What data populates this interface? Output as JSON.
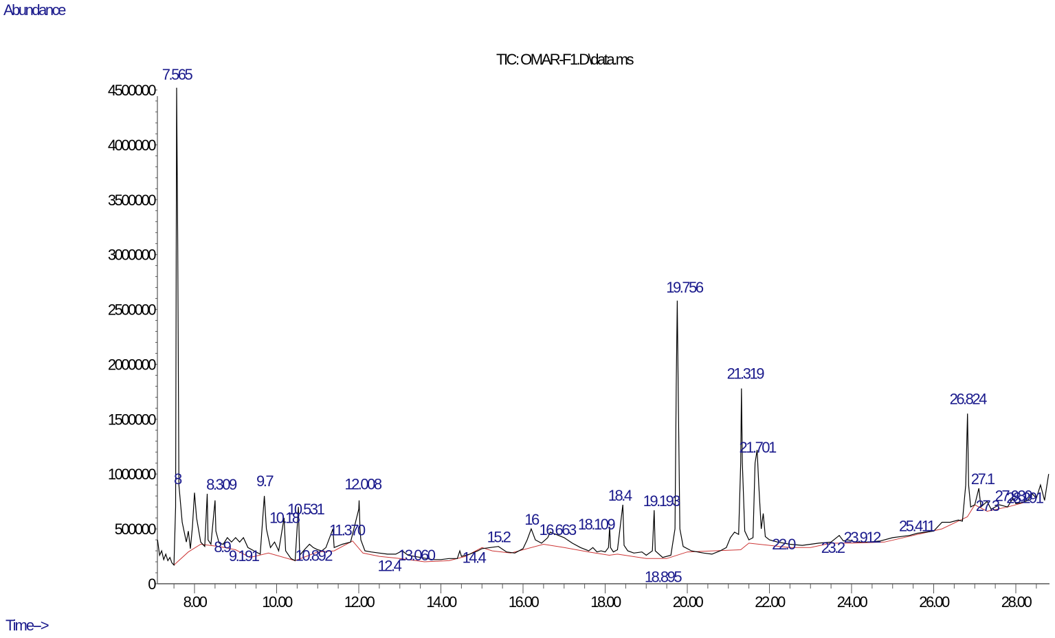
{
  "chart_data": {
    "type": "line",
    "title": "TIC: OMAR-F1.D\\data.ms",
    "ylabel": "Abundance",
    "xlabel": "Time-->",
    "xlim": [
      7.1,
      28.85
    ],
    "ylim": [
      0,
      4500000
    ],
    "grid": false,
    "legend": null,
    "x_ticks": [
      "8.00",
      "10.00",
      "12.00",
      "14.00",
      "16.00",
      "18.00",
      "20.00",
      "22.00",
      "24.00",
      "26.00",
      "28.00"
    ],
    "x_tick_values": [
      8,
      10,
      12,
      14,
      16,
      18,
      20,
      22,
      24,
      26,
      28
    ],
    "y_ticks": [
      "0",
      "500000",
      "1000000",
      "1500000",
      "2000000",
      "2500000",
      "3000000",
      "3500000",
      "4000000",
      "4500000"
    ],
    "y_tick_values": [
      0,
      500000,
      1000000,
      1500000,
      2000000,
      2500000,
      3000000,
      3500000,
      4000000,
      4500000
    ],
    "peaks": [
      {
        "label": "7.565",
        "rt": 7.565,
        "abundance": 4520000
      },
      {
        "label": "8",
        "rt": 7.58,
        "abundance": 870000
      },
      {
        "label": "8.309",
        "rt": 8.309,
        "abundance": 820000
      },
      {
        "label": "8.9",
        "rt": 8.5,
        "abundance": 500000
      },
      {
        "label": "9.191",
        "rt": 9.191,
        "abundance": 420000
      },
      {
        "label": "9.7",
        "rt": 9.7,
        "abundance": 800000
      },
      {
        "label": "10.18",
        "rt": 10.18,
        "abundance": 580000
      },
      {
        "label": "10.531",
        "rt": 10.531,
        "abundance": 690000
      },
      {
        "label": "10.892",
        "rt": 10.892,
        "abundance": 360000
      },
      {
        "label": "11.370",
        "rt": 11.37,
        "abundance": 530000
      },
      {
        "label": "12.008",
        "rt": 12.008,
        "abundance": 760000
      },
      {
        "label": "12.4",
        "rt": 12.4,
        "abundance": 330000
      },
      {
        "label": "13.060",
        "rt": 13.06,
        "abundance": 300000
      },
      {
        "label": "14.4",
        "rt": 14.46,
        "abundance": 280000
      },
      {
        "label": "15.2",
        "rt": 15.23,
        "abundance": 340000
      },
      {
        "label": "16",
        "rt": 16.2,
        "abundance": 500000
      },
      {
        "label": "16.663",
        "rt": 16.663,
        "abundance": 470000
      },
      {
        "label": "18.109",
        "rt": 18.109,
        "abundance": 520000
      },
      {
        "label": "18.4",
        "rt": 18.43,
        "abundance": 720000
      },
      {
        "label": "18.895",
        "rt": 18.895,
        "abundance": 290000
      },
      {
        "label": "19.193",
        "rt": 19.193,
        "abundance": 670000
      },
      {
        "label": "19.756",
        "rt": 19.756,
        "abundance": 2580000
      },
      {
        "label": "21.319",
        "rt": 21.319,
        "abundance": 1780000
      },
      {
        "label": "21.701",
        "rt": 21.701,
        "abundance": 1220000
      },
      {
        "label": "22.0",
        "rt": 22.0,
        "abundance": 400000
      },
      {
        "label": "23.2",
        "rt": 23.2,
        "abundance": 370000
      },
      {
        "label": "23.912",
        "rt": 23.912,
        "abundance": 400000
      },
      {
        "label": "25.411",
        "rt": 25.411,
        "abundance": 440000
      },
      {
        "label": "26.824",
        "rt": 26.824,
        "abundance": 1550000
      },
      {
        "label": "27.1",
        "rt": 27.1,
        "abundance": 870000
      },
      {
        "label": "27.930",
        "rt": 27.93,
        "abundance": 780000
      },
      {
        "label": "27.3",
        "rt": 27.3,
        "abundance": 750000
      },
      {
        "label": "28.291",
        "rt": 28.291,
        "abundance": 760000
      }
    ],
    "trace": [
      [
        7.1,
        400000
      ],
      [
        7.15,
        260000
      ],
      [
        7.2,
        300000
      ],
      [
        7.25,
        220000
      ],
      [
        7.3,
        270000
      ],
      [
        7.35,
        210000
      ],
      [
        7.4,
        240000
      ],
      [
        7.45,
        190000
      ],
      [
        7.5,
        170000
      ],
      [
        7.54,
        700000
      ],
      [
        7.565,
        4520000
      ],
      [
        7.59,
        3200000
      ],
      [
        7.62,
        900000
      ],
      [
        7.7,
        560000
      ],
      [
        7.8,
        380000
      ],
      [
        7.85,
        480000
      ],
      [
        7.9,
        320000
      ],
      [
        7.95,
        520000
      ],
      [
        8.0,
        830000
      ],
      [
        8.05,
        600000
      ],
      [
        8.15,
        380000
      ],
      [
        8.25,
        340000
      ],
      [
        8.309,
        820000
      ],
      [
        8.33,
        400000
      ],
      [
        8.4,
        360000
      ],
      [
        8.5,
        760000
      ],
      [
        8.52,
        480000
      ],
      [
        8.6,
        370000
      ],
      [
        8.7,
        360000
      ],
      [
        8.8,
        420000
      ],
      [
        8.9,
        380000
      ],
      [
        9.0,
        420000
      ],
      [
        9.1,
        380000
      ],
      [
        9.191,
        420000
      ],
      [
        9.3,
        330000
      ],
      [
        9.45,
        300000
      ],
      [
        9.6,
        270000
      ],
      [
        9.7,
        800000
      ],
      [
        9.75,
        500000
      ],
      [
        9.85,
        330000
      ],
      [
        9.95,
        380000
      ],
      [
        10.05,
        300000
      ],
      [
        10.18,
        600000
      ],
      [
        10.22,
        300000
      ],
      [
        10.35,
        230000
      ],
      [
        10.45,
        210000
      ],
      [
        10.531,
        700000
      ],
      [
        10.56,
        260000
      ],
      [
        10.7,
        320000
      ],
      [
        10.8,
        360000
      ],
      [
        10.892,
        330000
      ],
      [
        11.0,
        310000
      ],
      [
        11.1,
        300000
      ],
      [
        11.2,
        330000
      ],
      [
        11.37,
        500000
      ],
      [
        11.4,
        330000
      ],
      [
        11.6,
        360000
      ],
      [
        11.8,
        380000
      ],
      [
        12.0,
        680000
      ],
      [
        12.008,
        760000
      ],
      [
        12.03,
        500000
      ],
      [
        12.05,
        400000
      ],
      [
        12.15,
        300000
      ],
      [
        12.3,
        290000
      ],
      [
        12.5,
        280000
      ],
      [
        12.7,
        270000
      ],
      [
        12.9,
        270000
      ],
      [
        13.06,
        300000
      ],
      [
        13.2,
        260000
      ],
      [
        13.5,
        240000
      ],
      [
        13.8,
        220000
      ],
      [
        14.0,
        220000
      ],
      [
        14.2,
        230000
      ],
      [
        14.4,
        230000
      ],
      [
        14.46,
        300000
      ],
      [
        14.5,
        250000
      ],
      [
        14.7,
        270000
      ],
      [
        14.9,
        300000
      ],
      [
        15.0,
        320000
      ],
      [
        15.2,
        330000
      ],
      [
        15.4,
        340000
      ],
      [
        15.6,
        290000
      ],
      [
        15.8,
        280000
      ],
      [
        16.0,
        320000
      ],
      [
        16.1,
        400000
      ],
      [
        16.2,
        500000
      ],
      [
        16.3,
        400000
      ],
      [
        16.45,
        370000
      ],
      [
        16.6,
        420000
      ],
      [
        16.663,
        470000
      ],
      [
        16.8,
        450000
      ],
      [
        17.0,
        420000
      ],
      [
        17.2,
        370000
      ],
      [
        17.4,
        330000
      ],
      [
        17.6,
        300000
      ],
      [
        17.7,
        330000
      ],
      [
        17.8,
        290000
      ],
      [
        17.9,
        300000
      ],
      [
        18.0,
        290000
      ],
      [
        18.08,
        330000
      ],
      [
        18.109,
        520000
      ],
      [
        18.13,
        330000
      ],
      [
        18.2,
        290000
      ],
      [
        18.3,
        310000
      ],
      [
        18.43,
        720000
      ],
      [
        18.46,
        350000
      ],
      [
        18.55,
        300000
      ],
      [
        18.7,
        280000
      ],
      [
        18.895,
        290000
      ],
      [
        19.0,
        260000
      ],
      [
        19.15,
        300000
      ],
      [
        19.193,
        670000
      ],
      [
        19.22,
        300000
      ],
      [
        19.4,
        240000
      ],
      [
        19.6,
        260000
      ],
      [
        19.7,
        500000
      ],
      [
        19.73,
        1800000
      ],
      [
        19.756,
        2580000
      ],
      [
        19.78,
        1700000
      ],
      [
        19.82,
        500000
      ],
      [
        19.9,
        340000
      ],
      [
        20.1,
        300000
      ],
      [
        20.4,
        280000
      ],
      [
        20.6,
        270000
      ],
      [
        20.8,
        300000
      ],
      [
        20.95,
        330000
      ],
      [
        21.05,
        420000
      ],
      [
        21.15,
        470000
      ],
      [
        21.25,
        450000
      ],
      [
        21.3,
        1100000
      ],
      [
        21.319,
        1780000
      ],
      [
        21.34,
        1100000
      ],
      [
        21.4,
        480000
      ],
      [
        21.5,
        400000
      ],
      [
        21.6,
        420000
      ],
      [
        21.65,
        1100000
      ],
      [
        21.701,
        1220000
      ],
      [
        21.74,
        900000
      ],
      [
        21.8,
        500000
      ],
      [
        21.85,
        640000
      ],
      [
        21.9,
        430000
      ],
      [
        22.0,
        400000
      ],
      [
        22.2,
        380000
      ],
      [
        22.5,
        360000
      ],
      [
        22.8,
        350000
      ],
      [
        23.0,
        360000
      ],
      [
        23.2,
        370000
      ],
      [
        23.5,
        380000
      ],
      [
        23.7,
        440000
      ],
      [
        23.8,
        390000
      ],
      [
        23.912,
        400000
      ],
      [
        24.1,
        380000
      ],
      [
        24.4,
        380000
      ],
      [
        24.7,
        390000
      ],
      [
        25.0,
        420000
      ],
      [
        25.2,
        430000
      ],
      [
        25.411,
        440000
      ],
      [
        25.6,
        460000
      ],
      [
        25.8,
        470000
      ],
      [
        26.0,
        480000
      ],
      [
        26.2,
        560000
      ],
      [
        26.4,
        560000
      ],
      [
        26.6,
        580000
      ],
      [
        26.7,
        570000
      ],
      [
        26.78,
        900000
      ],
      [
        26.824,
        1550000
      ],
      [
        26.85,
        900000
      ],
      [
        26.9,
        700000
      ],
      [
        27.0,
        720000
      ],
      [
        27.1,
        870000
      ],
      [
        27.15,
        700000
      ],
      [
        27.3,
        750000
      ],
      [
        27.4,
        680000
      ],
      [
        27.6,
        720000
      ],
      [
        27.8,
        700000
      ],
      [
        27.93,
        780000
      ],
      [
        28.0,
        730000
      ],
      [
        28.15,
        740000
      ],
      [
        28.291,
        760000
      ],
      [
        28.4,
        820000
      ],
      [
        28.5,
        780000
      ],
      [
        28.6,
        900000
      ],
      [
        28.7,
        760000
      ],
      [
        28.8,
        1000000
      ]
    ],
    "baseline": [
      [
        7.5,
        170000
      ],
      [
        7.85,
        290000
      ],
      [
        8.15,
        360000
      ],
      [
        8.6,
        340000
      ],
      [
        9.0,
        310000
      ],
      [
        9.35,
        240000
      ],
      [
        9.8,
        280000
      ],
      [
        10.45,
        210000
      ],
      [
        11.0,
        290000
      ],
      [
        11.4,
        300000
      ],
      [
        11.85,
        390000
      ],
      [
        12.1,
        280000
      ],
      [
        12.5,
        250000
      ],
      [
        13.0,
        230000
      ],
      [
        13.6,
        200000
      ],
      [
        14.2,
        210000
      ],
      [
        14.6,
        250000
      ],
      [
        15.0,
        330000
      ],
      [
        15.25,
        300000
      ],
      [
        15.7,
        280000
      ],
      [
        16.5,
        360000
      ],
      [
        17.0,
        330000
      ],
      [
        17.6,
        290000
      ],
      [
        18.1,
        260000
      ],
      [
        18.3,
        270000
      ],
      [
        19.0,
        230000
      ],
      [
        19.5,
        230000
      ],
      [
        20.0,
        290000
      ],
      [
        21.3,
        310000
      ],
      [
        21.5,
        370000
      ],
      [
        22.5,
        330000
      ],
      [
        23.0,
        330000
      ],
      [
        23.5,
        370000
      ],
      [
        24.0,
        370000
      ],
      [
        24.8,
        380000
      ],
      [
        25.5,
        440000
      ],
      [
        26.2,
        500000
      ],
      [
        26.82,
        610000
      ],
      [
        27.0,
        720000
      ],
      [
        27.3,
        660000
      ],
      [
        27.8,
        700000
      ],
      [
        28.2,
        740000
      ]
    ]
  },
  "axes": {
    "y_title": "Abundance",
    "x_title": "Time-->",
    "plot_title": "TIC: OMAR-F1.D\\data.ms"
  },
  "colors": {
    "trace": "#000000",
    "baseline": "#cc3333",
    "peak_label": "#1a1a8c",
    "axis_text": "#000000"
  }
}
